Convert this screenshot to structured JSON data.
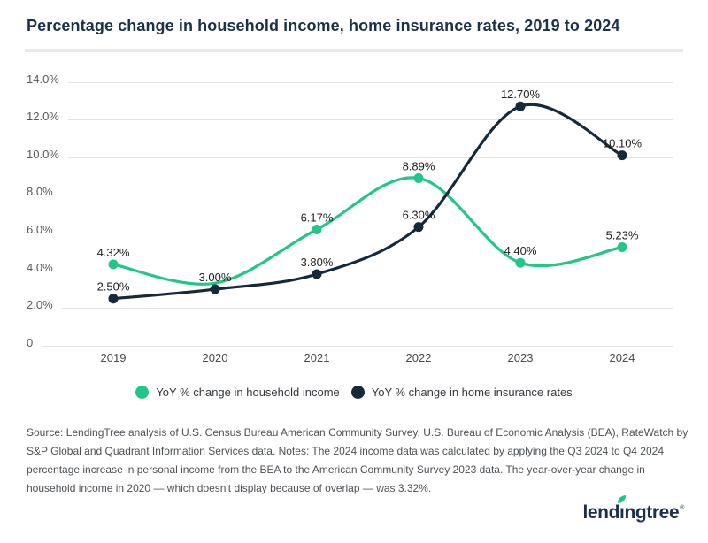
{
  "title": "Percentage change in household income, home insurance rates, 2019 to 2024",
  "chart_data": {
    "type": "line",
    "x_labels": [
      "2019",
      "2020",
      "2021",
      "2022",
      "2023",
      "2024"
    ],
    "series": [
      {
        "name": "YoY % change in household income",
        "color": "#22c687",
        "values": [
          4.32,
          3.32,
          6.17,
          8.89,
          4.4,
          5.23
        ],
        "point_labels": [
          "4.32%",
          null,
          "6.17%",
          "8.89%",
          "4.40%",
          "5.23%"
        ]
      },
      {
        "name": "YoY % change in home insurance rates",
        "color": "#16293b",
        "values": [
          2.5,
          3.0,
          3.8,
          6.3,
          12.7,
          10.1
        ],
        "point_labels": [
          "2.50%",
          "3.00%",
          "3.80%",
          "6.30%",
          "12.70%",
          "10.10%"
        ]
      }
    ],
    "y_ticks": [
      {
        "value": 14,
        "label": "14.0%"
      },
      {
        "value": 12,
        "label": "12.0%"
      },
      {
        "value": 10,
        "label": "10.0%"
      },
      {
        "value": 8,
        "label": "8.0%"
      },
      {
        "value": 6,
        "label": "6.0%"
      },
      {
        "value": 4,
        "label": "4.0%"
      },
      {
        "value": 2,
        "label": "2.0%"
      },
      {
        "value": 0,
        "label": "0"
      }
    ],
    "ylim": [
      0,
      14.8
    ],
    "grid": true,
    "legend_position": "bottom"
  },
  "source_note": "Source: LendingTree analysis of U.S. Census Bureau American Community Survey, U.S. Bureau of Economic Analysis (BEA), RateWatch by S&P Global and Quadrant Information Services data. Notes: The 2024 income data was calculated by applying the Q3 2024 to Q4 2024 percentage increase in personal income from the BEA to the American Community Survey 2023 data. The year-over-year change in household income in 2020 — which doesn't display because of overlap — was 3.32%.",
  "logo": {
    "part1": "lend",
    "dotless_i": "ı",
    "part2": "ngtree",
    "registered": "®",
    "leaf_color": "#22c687",
    "text_color": "#1d3049"
  },
  "colors": {
    "title": "#1d3049",
    "grid": "#e4e4e4",
    "y_axis_label": "#54595e",
    "x_axis_label": "#46494d",
    "data_label": "#1e1e1e"
  }
}
